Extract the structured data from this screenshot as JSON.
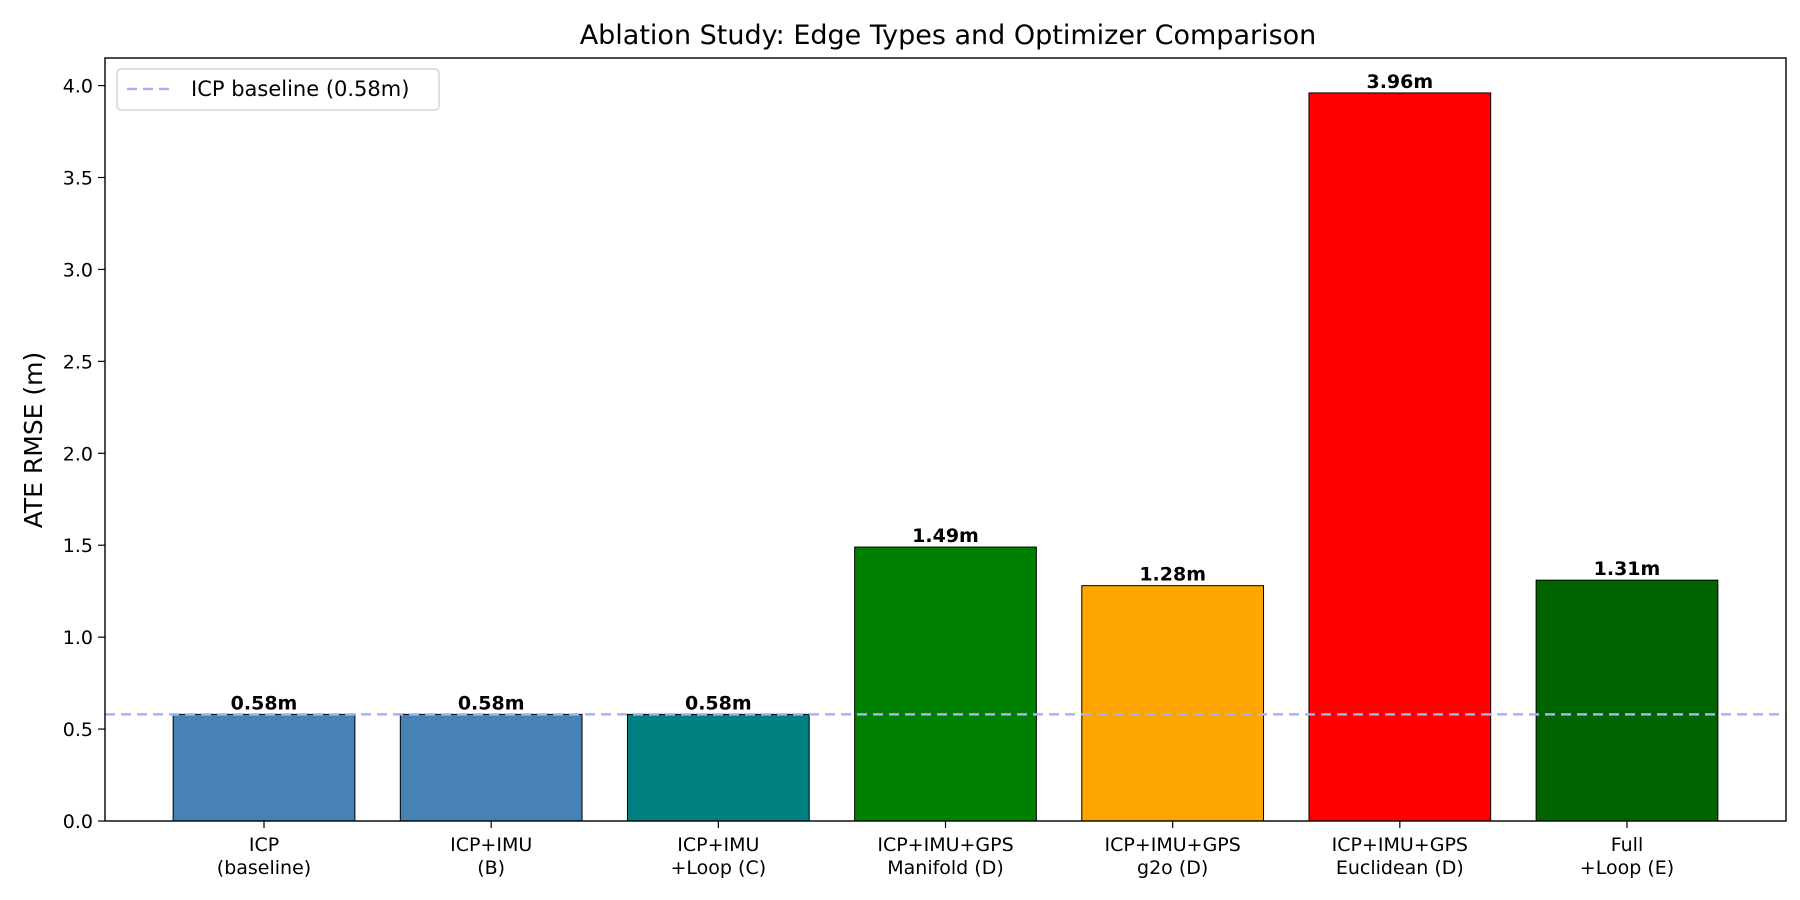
{
  "chart_data": {
    "type": "bar",
    "title": "Ablation Study: Edge Types and Optimizer Comparison",
    "xlabel": "",
    "ylabel": "ATE RMSE (m)",
    "categories": [
      [
        "ICP",
        "(baseline)"
      ],
      [
        "ICP+IMU",
        "(B)"
      ],
      [
        "ICP+IMU",
        "+Loop (C)"
      ],
      [
        "ICP+IMU+GPS",
        "Manifold (D)"
      ],
      [
        "ICP+IMU+GPS",
        "g2o (D)"
      ],
      [
        "ICP+IMU+GPS",
        "Euclidean (D)"
      ],
      [
        "Full",
        "+Loop (E)"
      ]
    ],
    "values": [
      0.58,
      0.58,
      0.58,
      1.49,
      1.28,
      3.96,
      1.31
    ],
    "value_labels": [
      "0.58m",
      "0.58m",
      "0.58m",
      "1.49m",
      "1.28m",
      "3.96m",
      "1.31m"
    ],
    "colors": [
      "#4682b4",
      "#4682b4",
      "#008080",
      "#008000",
      "#ffa500",
      "#ff0000",
      "#006400"
    ],
    "ylim": [
      0,
      4.15
    ],
    "yticks": [
      0.0,
      0.5,
      1.0,
      1.5,
      2.0,
      2.5,
      3.0,
      3.5,
      4.0
    ],
    "ytick_labels": [
      "0.0",
      "0.5",
      "1.0",
      "1.5",
      "2.0",
      "2.5",
      "3.0",
      "3.5",
      "4.0"
    ],
    "reference_line": {
      "value": 0.58,
      "label": "ICP baseline (0.58m)",
      "color": "#aab0f5",
      "style": "dashed"
    },
    "legend": {
      "position": "top-left"
    },
    "grid": false
  }
}
